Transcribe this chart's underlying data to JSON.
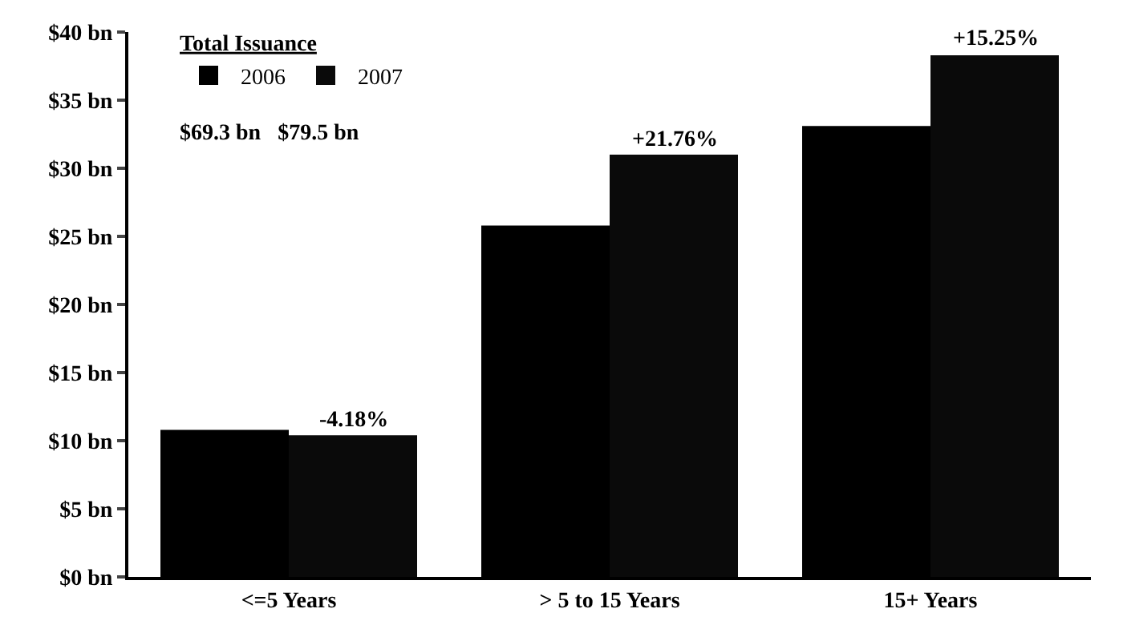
{
  "chart_data": {
    "type": "bar",
    "categories": [
      "<=5 Years",
      "> 5 to 15 Years",
      "15+ Years"
    ],
    "series": [
      {
        "name": "2006",
        "color": "#000000",
        "values": [
          10.8,
          25.8,
          33.1
        ]
      },
      {
        "name": "2007",
        "color": "#0a0a0a",
        "values": [
          10.4,
          31.0,
          38.3
        ]
      }
    ],
    "ylim": [
      0,
      40
    ],
    "yticks": [
      {
        "value": 0,
        "label": "$0 bn"
      },
      {
        "value": 5,
        "label": "$5 bn"
      },
      {
        "value": 10,
        "label": "$10 bn"
      },
      {
        "value": 15,
        "label": "$15 bn"
      },
      {
        "value": 20,
        "label": "$20 bn"
      },
      {
        "value": 25,
        "label": "$25 bn"
      },
      {
        "value": 30,
        "label": "$30 bn"
      },
      {
        "value": 35,
        "label": "$35 bn"
      },
      {
        "value": 40,
        "label": "$40 bn"
      }
    ],
    "legend_title": "Total Issuance",
    "legend": "top left",
    "grid": false,
    "annotations": [
      "$69.3 bn   $79.5 bn",
      {
        "text": "-4.18%",
        "x": "<=5 Years",
        "y": 10.4
      },
      {
        "text": "+21.76%",
        "x": "> 5 to 15 Years",
        "y": 31.0
      },
      {
        "text": "+15.25%",
        "x": "15+ Years",
        "y": 38.3
      }
    ]
  }
}
